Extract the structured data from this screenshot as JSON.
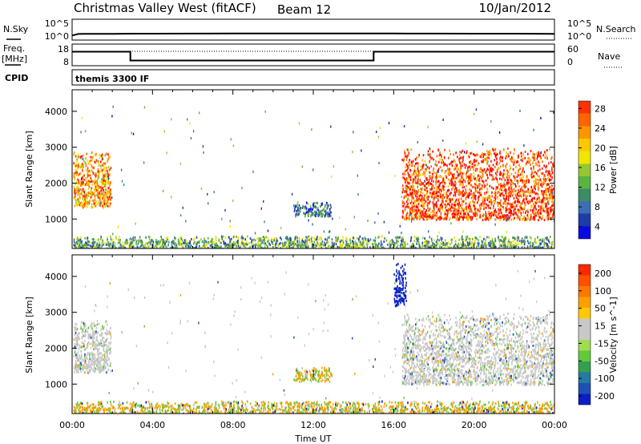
{
  "header": {
    "station": "Christmas Valley West (fitACF)",
    "beam": "Beam 12",
    "date": "10/Jan/2012"
  },
  "summary_left_labels": {
    "nsky": "N.Sky",
    "freq": "Freq.",
    "freq_unit": "[MHz]",
    "cpid": "CPID"
  },
  "summary_right_labels": {
    "nsearch": "N.Search",
    "nave": "Nave"
  },
  "cpid_name": "themis 3300 IF",
  "chart_data": [
    {
      "id": "noise",
      "type": "line",
      "x": [
        0,
        0.3,
        0.6,
        1,
        2,
        3,
        4,
        6,
        8,
        10,
        12,
        14,
        16,
        18,
        20,
        22,
        24
      ],
      "series": [
        {
          "values": [
            10.5,
            25,
            26,
            26,
            27,
            29,
            30,
            31,
            32,
            33,
            32,
            33,
            32,
            31,
            30,
            29,
            27
          ]
        }
      ],
      "ylim": [
        0.8,
        100000
      ],
      "scale": "log",
      "yticks_left": [
        "10^5",
        "10^0"
      ],
      "yticks_right": [
        "10^5",
        "10^0"
      ]
    },
    {
      "id": "freq",
      "type": "line",
      "x": [
        0,
        2.9,
        2.9,
        15.0,
        15.0,
        24
      ],
      "series": [
        {
          "values": [
            14.5,
            14.5,
            10.4,
            10.4,
            14.5,
            14.5
          ]
        }
      ],
      "nave_level": 40,
      "ylim": [
        8,
        18
      ],
      "yticks_left": [
        18,
        8
      ],
      "yticks_right": [
        60,
        0
      ]
    },
    {
      "id": "power",
      "type": "heatmap",
      "ylabel": "Slant Range [km]",
      "yticks": [
        1000,
        2000,
        3000,
        4000
      ],
      "ylim": [
        180,
        4600
      ],
      "xlim": [
        0,
        24
      ],
      "colorbar": {
        "label": "Power [dB]",
        "ticks": [
          4,
          8,
          12,
          16,
          20,
          24,
          28
        ],
        "colors": [
          "#0a0ae0",
          "#1e3ca8",
          "#3c6eb4",
          "#3c8c64",
          "#5ab440",
          "#96c832",
          "#f0e600",
          "#ffc800",
          "#ff9600",
          "#ff6400",
          "#ff3200",
          "#ff0000"
        ]
      },
      "regions": [
        {
          "x0": 0.05,
          "x1": 1.9,
          "y0": 1350,
          "y1": 2900,
          "level": 0.7
        },
        {
          "x0": 11.0,
          "x1": 12.9,
          "y0": 1100,
          "y1": 1500,
          "level": 0.25
        },
        {
          "x0": 16.4,
          "x1": 24.0,
          "y0": 1000,
          "y1": 3000,
          "level": 0.85
        },
        {
          "x0": 0.05,
          "x1": 24.0,
          "y0": 200,
          "y1": 550,
          "level": 0.35
        }
      ]
    },
    {
      "id": "velocity",
      "type": "heatmap",
      "ylabel": "Slant Range [km]",
      "xlabel": "Time UT",
      "yticks": [
        1000,
        2000,
        3000,
        4000
      ],
      "ylim": [
        180,
        4600
      ],
      "xlim": [
        0,
        24
      ],
      "xticks": [
        "00:00",
        "04:00",
        "08:00",
        "12:00",
        "16:00",
        "20:00",
        "00:00"
      ],
      "colorbar": {
        "label": "Velocity [m s^-1]",
        "ticks": [
          200,
          100,
          50,
          15,
          -15,
          -50,
          -100,
          -200
        ],
        "colors": [
          "#0a1ec8",
          "#1e50b4",
          "#2878a0",
          "#32a050",
          "#64c83c",
          "#a0dc50",
          "#c8c8c8",
          "#c8c8c8",
          "#ffc800",
          "#ffa000",
          "#ff7800",
          "#ff5000",
          "#ff2800",
          "#ff0000"
        ]
      },
      "regions": [
        {
          "x0": 0.05,
          "x1": 1.9,
          "y0": 1350,
          "y1": 2800,
          "kind": "grey"
        },
        {
          "x0": 11.0,
          "x1": 12.9,
          "y0": 1100,
          "y1": 1500,
          "kind": "orange"
        },
        {
          "x0": 16.4,
          "x1": 24.0,
          "y0": 1000,
          "y1": 3000,
          "kind": "grey"
        },
        {
          "x0": 16.0,
          "x1": 16.6,
          "y0": 3200,
          "y1": 4400,
          "kind": "blue"
        },
        {
          "x0": 0.05,
          "x1": 24.0,
          "y0": 200,
          "y1": 550,
          "kind": "orange"
        }
      ]
    }
  ]
}
